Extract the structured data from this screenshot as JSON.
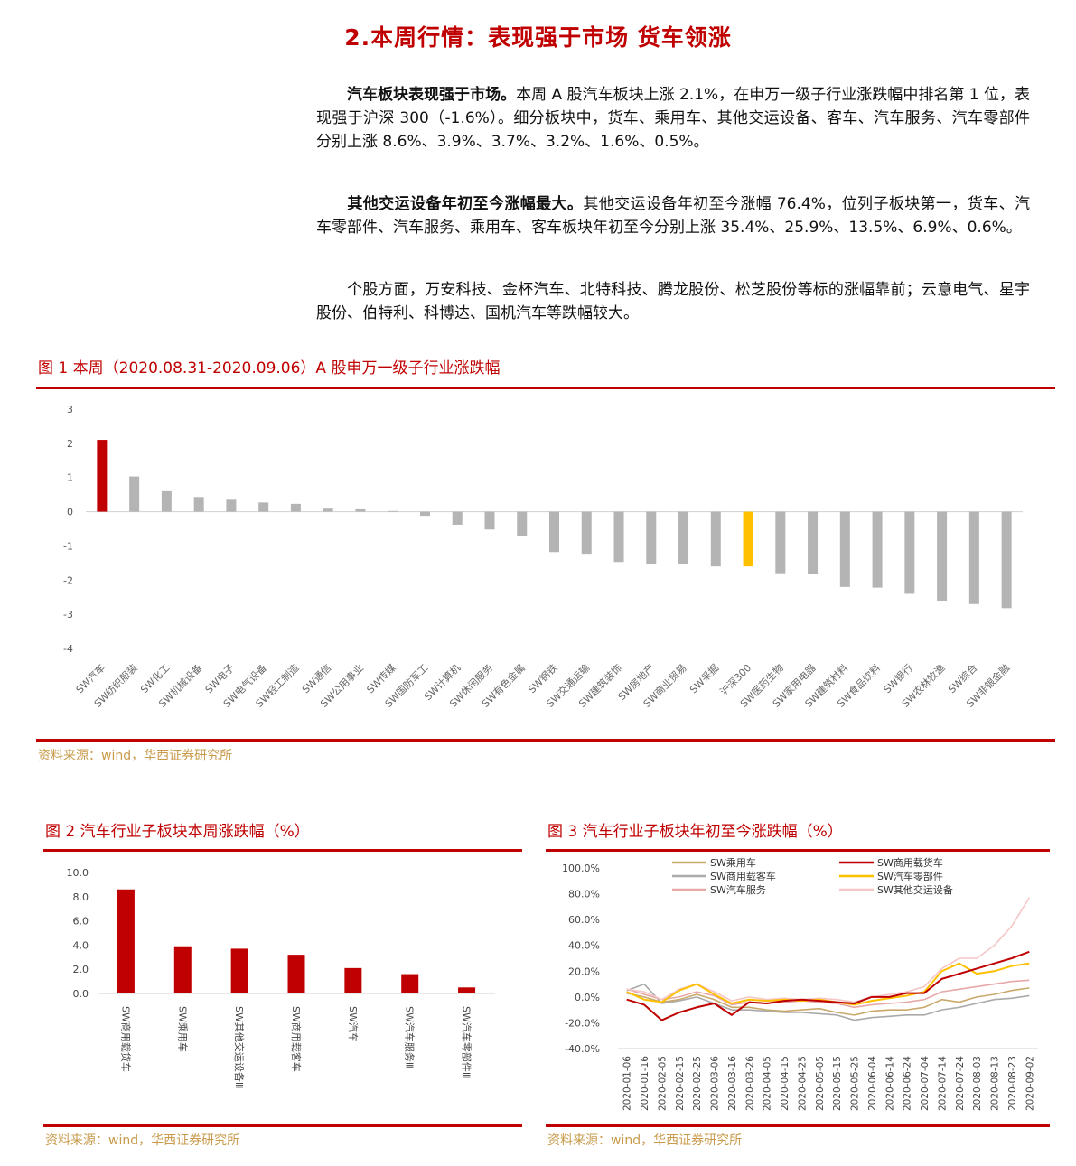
{
  "section_title": "2.本周行情：表现强于市场 货车领涨",
  "paragraphs": [
    {
      "lead": "汽车板块表现强于市场。",
      "body": "本周 A 股汽车板块上涨 2.1%，在申万一级子行业涨跌幅中排名第 1 位，表现强于沪深 300（-1.6%）。细分板块中，货车、乘用车、其他交运设备、客车、汽车服务、汽车零部件分别上涨 8.6%、3.9%、3.7%、3.2%、1.6%、0.5%。"
    },
    {
      "lead": "其他交运设备年初至今涨幅最大。",
      "body": "其他交运设备年初至今涨幅 76.4%，位列子板块第一，货车、汽车零部件、汽车服务、乘用车、客车板块年初至今分别上涨 35.4%、25.9%、13.5%、6.9%、0.6%。"
    },
    {
      "lead": "",
      "body": "个股方面，万安科技、金杯汽车、北特科技、腾龙股份、松芝股份等标的涨幅靠前；云意电气、星宇股份、伯特利、科博达、国机汽车等跌幅较大。"
    }
  ],
  "fig1": {
    "title": "图 1 本周（2020.08.31-2020.09.06）A 股申万一级子行业涨跌幅",
    "source": "资料来源：wind，华西证券研究所"
  },
  "fig2": {
    "title": "图 2 汽车行业子板块本周涨跌幅（%）",
    "source": "资料来源：wind，华西证券研究所"
  },
  "fig3": {
    "title": "图 3 汽车行业子板块年初至今涨跌幅（%）",
    "source": "资料来源：wind，华西证券研究所"
  },
  "colors": {
    "accent": "#c00000",
    "highlight": "#ffc000",
    "bar_grey": "#b4b4b4"
  },
  "chart_data": [
    {
      "type": "bar",
      "categories": [
        "SW汽车",
        "SW纺织服装",
        "SW化工",
        "SW机械设备",
        "SW电子",
        "SW电气设备",
        "SW轻工制造",
        "SW通信",
        "SW公用事业",
        "SW传媒",
        "SW国防军工",
        "SW计算机",
        "SW休闲服务",
        "SW有色金属",
        "SW钢铁",
        "SW交通运输",
        "SW建筑装饰",
        "SW房地产",
        "SW商业贸易",
        "SW采掘",
        "沪深300",
        "SW医药生物",
        "SW家用电器",
        "SW建筑材料",
        "SW食品饮料",
        "SW银行",
        "SW农林牧渔",
        "SW综合",
        "SW非银金融"
      ],
      "values": [
        2.1,
        1.03,
        0.6,
        0.43,
        0.35,
        0.27,
        0.23,
        0.09,
        0.07,
        0.02,
        -0.12,
        -0.38,
        -0.52,
        -0.72,
        -1.18,
        -1.23,
        -1.47,
        -1.52,
        -1.53,
        -1.6,
        -1.6,
        -1.8,
        -1.83,
        -2.2,
        -2.22,
        -2.4,
        -2.6,
        -2.7,
        -2.82
      ],
      "yticks": [
        "3",
        "2",
        "1",
        "0",
        "-1",
        "-2",
        "-3",
        "-4"
      ],
      "ylim": [
        -4,
        3
      ]
    },
    {
      "type": "bar",
      "categories": [
        "SW商用载货车",
        "SW乘用车",
        "SW其他交运设备Ⅲ",
        "SW商用载客车",
        "SW汽车",
        "SW汽车服务Ⅲ",
        "SW汽车零部件Ⅲ"
      ],
      "values": [
        8.6,
        3.9,
        3.7,
        3.2,
        2.1,
        1.6,
        0.5
      ],
      "yticks": [
        "10.0",
        "8.0",
        "6.0",
        "4.0",
        "2.0",
        "0.0"
      ],
      "ylim": [
        0,
        10
      ]
    },
    {
      "type": "line",
      "x": [
        "2020-01-06",
        "2020-01-16",
        "2020-02-05",
        "2020-02-15",
        "2020-02-25",
        "2020-03-06",
        "2020-03-16",
        "2020-03-26",
        "2020-04-05",
        "2020-04-15",
        "2020-04-25",
        "2020-05-05",
        "2020-05-15",
        "2020-05-25",
        "2020-06-04",
        "2020-06-14",
        "2020-06-24",
        "2020-07-04",
        "2020-07-14",
        "2020-07-24",
        "2020-08-03",
        "2020-08-13",
        "2020-08-23",
        "2020-09-02"
      ],
      "yticks": [
        "100.0%",
        "80.0%",
        "60.0%",
        "40.0%",
        "20.0%",
        "0.0%",
        "-20.0%",
        "-40.0%"
      ],
      "ylim": [
        -40,
        100
      ],
      "series": [
        {
          "name": "SW乘用车",
          "color": "#c9a96a",
          "values": [
            3,
            0,
            -4,
            -2,
            2,
            -2,
            -8,
            -8,
            -10,
            -11,
            -10,
            -9,
            -12,
            -14,
            -11,
            -10,
            -10,
            -8,
            -2,
            -4,
            0,
            2,
            5,
            7
          ]
        },
        {
          "name": "SW商用载货车",
          "color": "#c00000",
          "values": [
            -2,
            -6,
            -18,
            -12,
            -8,
            -5,
            -14,
            -4,
            -5,
            -3,
            -2,
            -3,
            -4,
            -5,
            0,
            0,
            3,
            3,
            14,
            18,
            22,
            26,
            30,
            35
          ]
        },
        {
          "name": "SW商用载客车",
          "color": "#aaaaaa",
          "values": [
            5,
            10,
            -5,
            -3,
            0,
            -5,
            -10,
            -10,
            -11,
            -12,
            -12,
            -13,
            -14,
            -18,
            -16,
            -15,
            -14,
            -14,
            -10,
            -8,
            -5,
            -2,
            -1,
            1
          ]
        },
        {
          "name": "SW汽车零部件",
          "color": "#ffc000",
          "values": [
            4,
            -2,
            -4,
            5,
            10,
            2,
            -5,
            -2,
            -3,
            -2,
            -3,
            -2,
            -4,
            -6,
            -3,
            -1,
            1,
            4,
            20,
            26,
            18,
            20,
            24,
            26
          ]
        },
        {
          "name": "SW汽车服务",
          "color": "#e7a8a8",
          "values": [
            6,
            2,
            -2,
            0,
            4,
            1,
            -6,
            -4,
            -5,
            -4,
            -3,
            -4,
            -5,
            -8,
            -6,
            -5,
            -4,
            -2,
            4,
            6,
            8,
            10,
            12,
            13
          ]
        },
        {
          "name": "SW其他交运设备",
          "color": "#f4c6c6",
          "values": [
            6,
            4,
            -2,
            6,
            10,
            4,
            -3,
            0,
            -2,
            -1,
            -2,
            -1,
            -2,
            -4,
            0,
            2,
            4,
            8,
            22,
            30,
            30,
            40,
            55,
            77
          ]
        }
      ]
    }
  ]
}
